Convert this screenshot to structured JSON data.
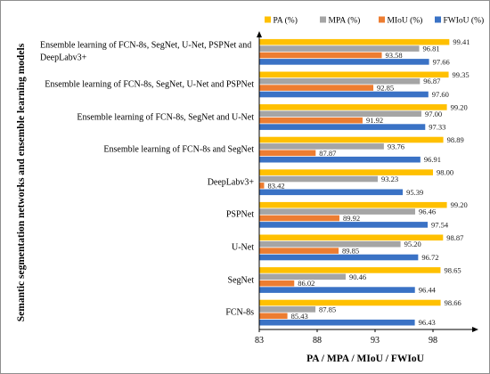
{
  "chart_data": {
    "type": "bar",
    "orientation": "horizontal",
    "categories": [
      "Ensemble learning of FCN-8s, SegNet, U-Net, PSPNet and DeepLabv3+",
      "Ensemble learning of FCN-8s, SegNet, U-Net and PSPNet",
      "Ensemble learning of FCN-8s, SegNet and U-Net",
      "Ensemble learning of FCN-8s and SegNet",
      "DeepLabv3+",
      "PSPNet",
      "U-Net",
      "SegNet",
      "FCN-8s"
    ],
    "series": [
      {
        "name": "PA (%)",
        "color": "#FFC000",
        "values": [
          99.41,
          99.35,
          99.2,
          98.89,
          98.0,
          99.2,
          98.87,
          98.65,
          98.66
        ]
      },
      {
        "name": "MPA (%)",
        "color": "#A5A5A5",
        "values": [
          96.81,
          96.87,
          97.0,
          93.76,
          93.23,
          96.46,
          95.2,
          90.46,
          87.85
        ]
      },
      {
        "name": "MIoU (%)",
        "color": "#ED7D31",
        "values": [
          93.58,
          92.85,
          91.92,
          87.87,
          83.42,
          89.92,
          89.85,
          86.02,
          85.43
        ]
      },
      {
        "name": "FWIoU (%)",
        "color": "#3A72C5",
        "values": [
          97.66,
          97.6,
          97.33,
          96.91,
          95.39,
          97.54,
          96.72,
          96.44,
          96.43
        ]
      }
    ],
    "xlabel": "PA / MPA / MIoU / FWIoU",
    "ylabel": "Semantic segmentation networks and ensemble learning models",
    "xticks": [
      83,
      88,
      93,
      98
    ],
    "xlim": [
      83,
      100
    ],
    "legend": "top-right",
    "grid": false
  }
}
